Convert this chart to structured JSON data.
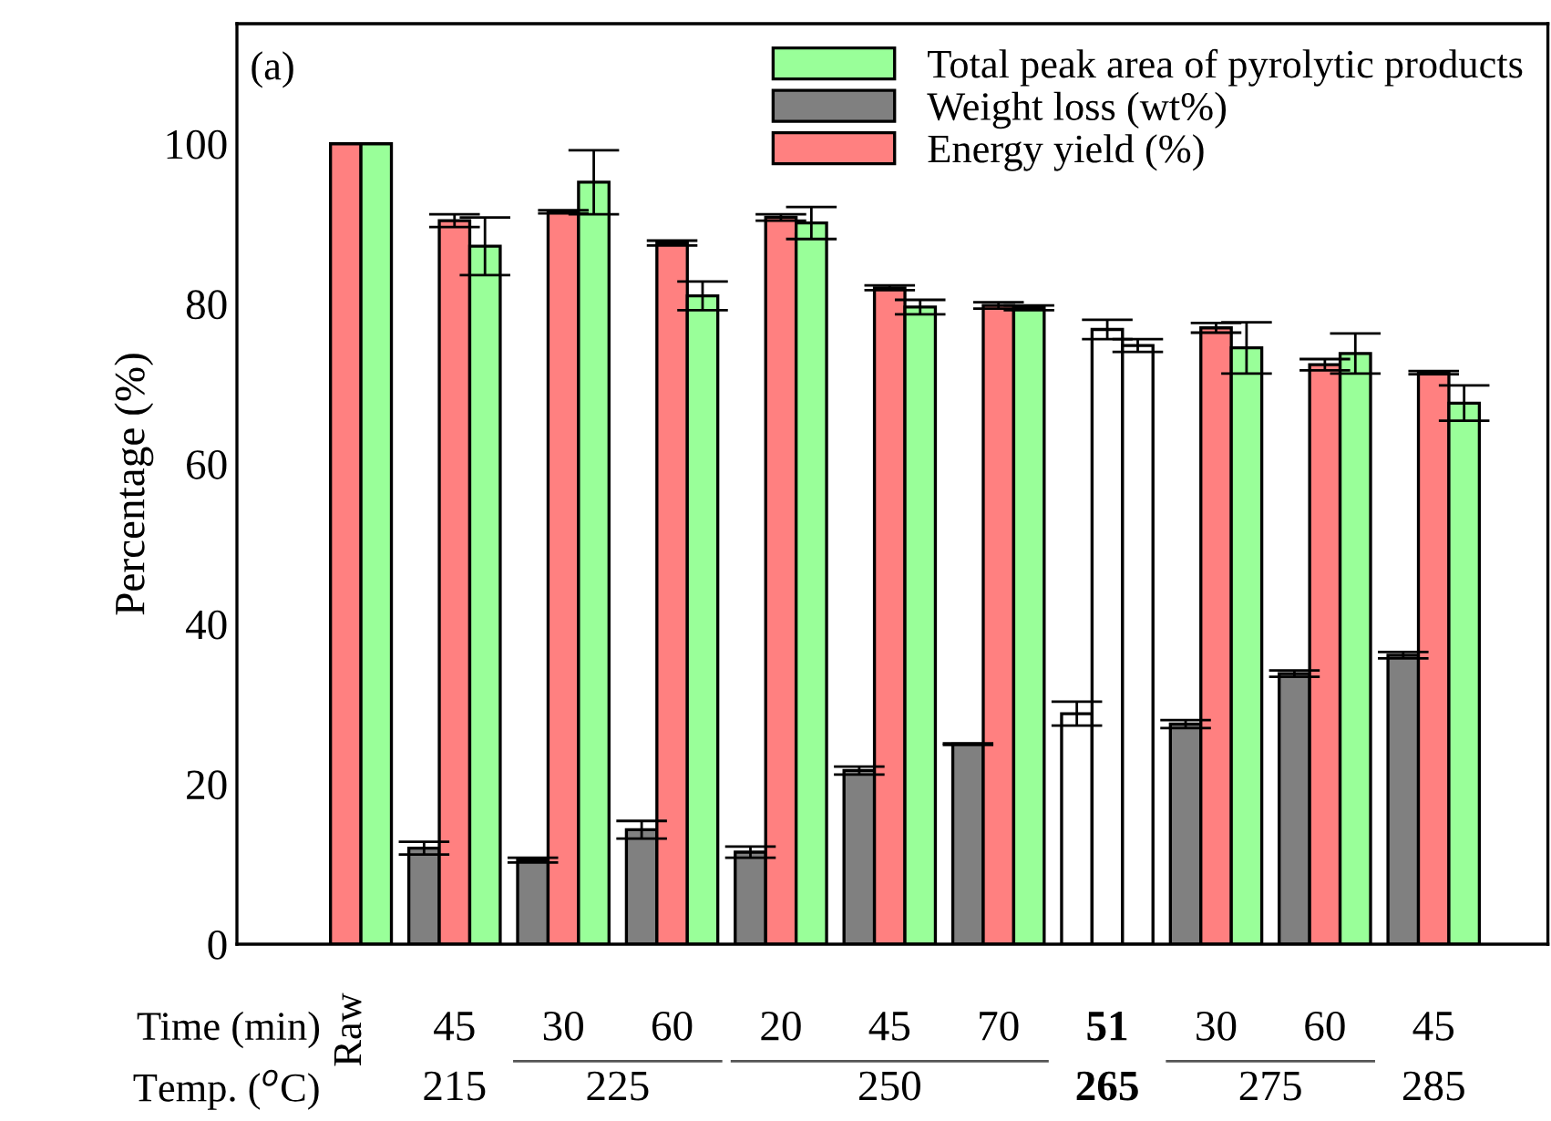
{
  "chart_data": {
    "type": "bar",
    "ylabel": "Percentage (%)",
    "categories": [
      "Raw",
      "45",
      "30",
      "60",
      "20",
      "45",
      "70",
      "51",
      "30",
      "60",
      "45"
    ],
    "series": [
      {
        "name": "Weight loss (wt%)",
        "color": "#808080",
        "colors": [
          "#808080",
          "#808080",
          "#808080",
          "#808080",
          "#808080",
          "#808080",
          "#808080",
          "#ffffff",
          "#808080",
          "#808080",
          "#808080"
        ],
        "values": [
          null,
          12,
          10.5,
          14.3,
          11.5,
          21.7,
          25,
          28.8,
          27.5,
          33.8,
          36.1
        ],
        "errors": [
          null,
          0.8,
          0.3,
          1.1,
          0.7,
          0.5,
          0.1,
          1.5,
          0.5,
          0.4,
          0.4
        ]
      },
      {
        "name": "Energy yield (%)",
        "color": "#ff8080",
        "colors": [
          "#ff8080",
          "#ff8080",
          "#ff8080",
          "#ff8080",
          "#ff8080",
          "#ff8080",
          "#ff8080",
          "#ffffff",
          "#ff8080",
          "#ff8080",
          "#ff8080"
        ],
        "values": [
          100,
          90.4,
          91.5,
          87.6,
          90.8,
          82,
          79.8,
          76.8,
          77,
          72.4,
          71.4
        ],
        "errors": [
          null,
          0.8,
          0.2,
          0.3,
          0.4,
          0.3,
          0.4,
          1.2,
          0.6,
          0.7,
          0.2
        ]
      },
      {
        "name": "Total peak area of pyrolytic products",
        "color": "#99ff99",
        "colors": [
          "#99ff99",
          "#99ff99",
          "#99ff99",
          "#99ff99",
          "#99ff99",
          "#99ff99",
          "#99ff99",
          "#ffffff",
          "#99ff99",
          "#99ff99",
          "#99ff99"
        ],
        "values": [
          100,
          87.2,
          95.2,
          81,
          90.1,
          79.6,
          79.5,
          74.8,
          74.5,
          73.8,
          67.6
        ],
        "errors": [
          null,
          3.6,
          4,
          1.8,
          2,
          0.9,
          0.3,
          0.8,
          3.2,
          2.5,
          2.2
        ]
      }
    ],
    "ylim": [
      0,
      115
    ],
    "yticks": [
      0,
      20,
      40,
      60,
      80,
      100
    ],
    "grid": false,
    "legend": "top right",
    "annotations": [
      "(a)",
      "Time (min)",
      "Temp. ($^{o}$C)",
      "215",
      "225",
      "250",
      "265",
      "275",
      "285"
    ]
  }
}
